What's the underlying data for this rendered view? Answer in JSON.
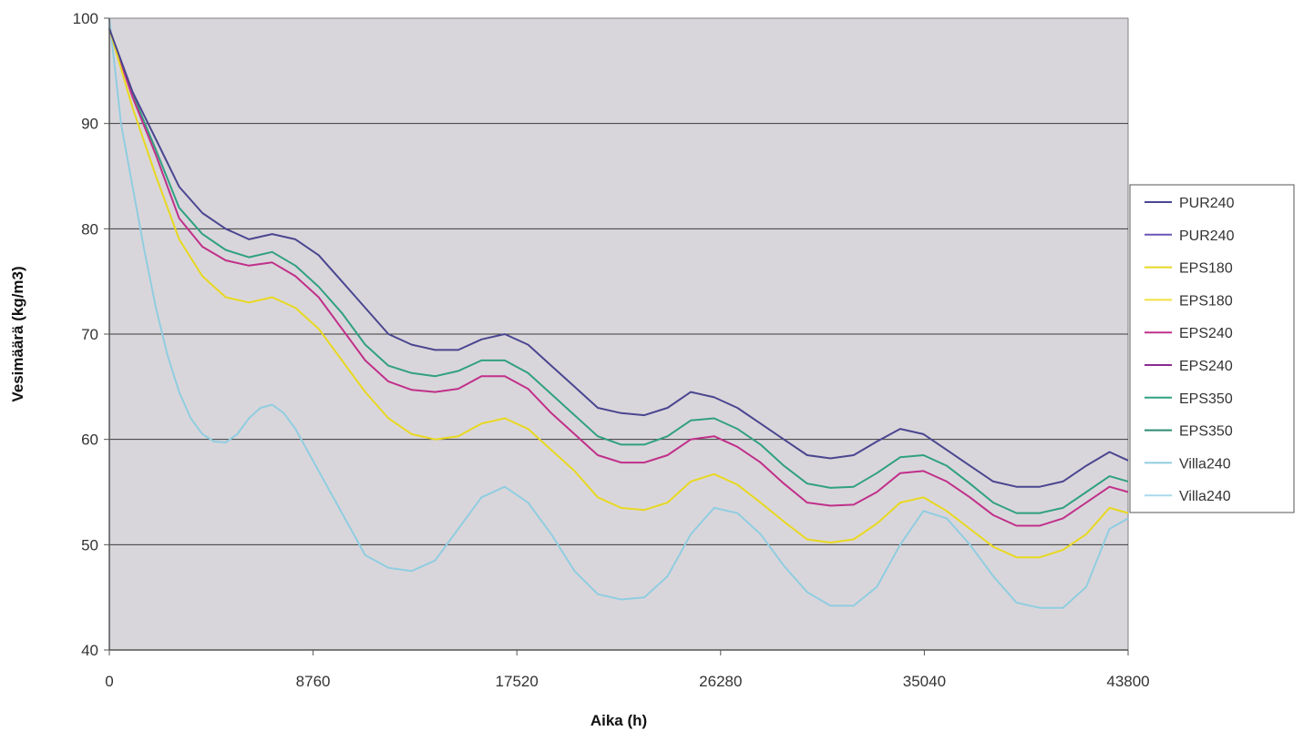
{
  "chart_data": {
    "type": "line",
    "title": "",
    "xlabel": "Aika (h)",
    "ylabel": "Vesimäärä (kg/m3)",
    "xlim": [
      0,
      43800
    ],
    "ylim": [
      40,
      100
    ],
    "x_ticks": [
      0,
      8760,
      17520,
      26280,
      35040,
      43800
    ],
    "y_ticks": [
      40,
      50,
      60,
      70,
      80,
      90,
      100
    ],
    "grid": "horizontal",
    "legend": "right",
    "background": "#d9d6db",
    "series": [
      {
        "name": "PUR240",
        "color": "#4a4690",
        "x": [
          0,
          1000,
          2000,
          3000,
          4000,
          5000,
          6000,
          7000,
          8000,
          9000,
          10000,
          11000,
          12000,
          13000,
          14000,
          15000,
          16000,
          17000,
          18000,
          19000,
          20000,
          21000,
          22000,
          23000,
          24000,
          25000,
          26000,
          27000,
          28000,
          29000,
          30000,
          31000,
          32000,
          33000,
          34000,
          35000,
          36000,
          37000,
          38000,
          39000,
          40000,
          41000,
          42000,
          43000,
          43800
        ],
        "y": [
          99,
          93,
          88.5,
          84,
          81.5,
          80,
          79,
          79.5,
          79,
          77.5,
          75,
          72.5,
          70,
          69,
          68.5,
          68.5,
          69.5,
          70,
          69,
          67,
          65,
          63,
          62.5,
          62.3,
          63,
          64.5,
          64,
          63,
          61.5,
          60,
          58.5,
          58.2,
          58.5,
          59.8,
          61,
          60.5,
          59,
          57.5,
          56,
          55.5,
          55.5,
          56,
          57.5,
          58.8,
          58
        ]
      },
      {
        "name": "PUR240",
        "color": "#6b55b8",
        "x": [
          0,
          43800
        ],
        "y": [
          99,
          58
        ]
      },
      {
        "name": "EPS180",
        "color": "#e8d820",
        "x": [
          0,
          1000,
          2000,
          3000,
          4000,
          5000,
          6000,
          7000,
          8000,
          9000,
          10000,
          11000,
          12000,
          13000,
          14000,
          15000,
          16000,
          17000,
          18000,
          19000,
          20000,
          21000,
          22000,
          23000,
          24000,
          25000,
          26000,
          27000,
          28000,
          29000,
          30000,
          31000,
          32000,
          33000,
          34000,
          35000,
          36000,
          37000,
          38000,
          39000,
          40000,
          41000,
          42000,
          43000,
          43800
        ],
        "y": [
          99,
          91.5,
          85,
          79,
          75.5,
          73.5,
          73,
          73.5,
          72.5,
          70.5,
          67.5,
          64.5,
          62,
          60.5,
          60,
          60.3,
          61.5,
          62,
          61,
          59,
          57,
          54.5,
          53.5,
          53.3,
          54,
          56,
          56.7,
          55.7,
          54,
          52.2,
          50.5,
          50.2,
          50.5,
          52,
          54,
          54.5,
          53.2,
          51.5,
          49.8,
          48.8,
          48.8,
          49.5,
          51,
          53.5,
          53
        ]
      },
      {
        "name": "EPS180",
        "color": "#f0e040",
        "x": [
          0,
          43800
        ],
        "y": [
          99,
          53
        ]
      },
      {
        "name": "EPS240",
        "color": "#c0308a",
        "x": [
          0,
          1000,
          2000,
          3000,
          4000,
          5000,
          6000,
          7000,
          8000,
          9000,
          10000,
          11000,
          12000,
          13000,
          14000,
          15000,
          16000,
          17000,
          18000,
          19000,
          20000,
          21000,
          22000,
          23000,
          24000,
          25000,
          26000,
          27000,
          28000,
          29000,
          30000,
          31000,
          32000,
          33000,
          34000,
          35000,
          36000,
          37000,
          38000,
          39000,
          40000,
          41000,
          42000,
          43000,
          43800
        ],
        "y": [
          99,
          92.5,
          87,
          81,
          78.3,
          77,
          76.5,
          76.8,
          75.5,
          73.5,
          70.5,
          67.5,
          65.5,
          64.7,
          64.5,
          64.8,
          66,
          66,
          64.8,
          62.5,
          60.5,
          58.5,
          57.8,
          57.8,
          58.5,
          60,
          60.3,
          59.3,
          57.8,
          55.8,
          54,
          53.7,
          53.8,
          55,
          56.8,
          57,
          56,
          54.5,
          52.8,
          51.8,
          51.8,
          52.5,
          54,
          55.5,
          55
        ]
      },
      {
        "name": "EPS240",
        "color": "#8a2c90",
        "x": [
          0,
          43800
        ],
        "y": [
          99,
          55
        ]
      },
      {
        "name": "EPS350",
        "color": "#30a080",
        "x": [
          0,
          1000,
          2000,
          3000,
          4000,
          5000,
          6000,
          7000,
          8000,
          9000,
          10000,
          11000,
          12000,
          13000,
          14000,
          15000,
          16000,
          17000,
          18000,
          19000,
          20000,
          21000,
          22000,
          23000,
          24000,
          25000,
          26000,
          27000,
          28000,
          29000,
          30000,
          31000,
          32000,
          33000,
          34000,
          35000,
          36000,
          37000,
          38000,
          39000,
          40000,
          41000,
          42000,
          43000,
          43800
        ],
        "y": [
          99,
          92.8,
          87.5,
          82,
          79.5,
          78,
          77.3,
          77.8,
          76.5,
          74.5,
          72,
          69,
          67,
          66.3,
          66,
          66.5,
          67.5,
          67.5,
          66.3,
          64.3,
          62.3,
          60.3,
          59.5,
          59.5,
          60.3,
          61.8,
          62,
          61,
          59.5,
          57.5,
          55.8,
          55.4,
          55.5,
          56.8,
          58.3,
          58.5,
          57.5,
          55.8,
          54,
          53,
          53,
          53.5,
          55,
          56.5,
          56
        ]
      },
      {
        "name": "EPS350",
        "color": "#2a8c70",
        "x": [
          0,
          43800
        ],
        "y": [
          99,
          56
        ]
      },
      {
        "name": "Villa240",
        "color": "#90cde0",
        "x": [
          0,
          500,
          1000,
          1500,
          2000,
          2500,
          3000,
          3500,
          4000,
          4500,
          5000,
          5500,
          6000,
          6500,
          7000,
          7500,
          8000,
          9000,
          10000,
          11000,
          12000,
          13000,
          14000,
          15000,
          16000,
          17000,
          18000,
          19000,
          20000,
          21000,
          22000,
          23000,
          24000,
          25000,
          26000,
          27000,
          28000,
          29000,
          30000,
          31000,
          32000,
          33000,
          34000,
          35000,
          36000,
          37000,
          38000,
          39000,
          40000,
          41000,
          42000,
          43000,
          43800
        ],
        "y": [
          100,
          90,
          84,
          78,
          72.5,
          68,
          64.5,
          62,
          60.5,
          59.8,
          59.7,
          60.5,
          62,
          63,
          63.3,
          62.5,
          61,
          57,
          53,
          49,
          47.8,
          47.5,
          48.5,
          51.5,
          54.5,
          55.5,
          54,
          51,
          47.5,
          45.3,
          44.8,
          45,
          47,
          51,
          53.5,
          53,
          51,
          48,
          45.5,
          44.2,
          44.2,
          46,
          50,
          53.2,
          52.5,
          50,
          47,
          44.5,
          44,
          44,
          46,
          51.5,
          52.5
        ]
      },
      {
        "name": "Villa240",
        "color": "#a8d8ea",
        "x": [
          0,
          43800
        ],
        "y": [
          100,
          52
        ]
      }
    ]
  }
}
